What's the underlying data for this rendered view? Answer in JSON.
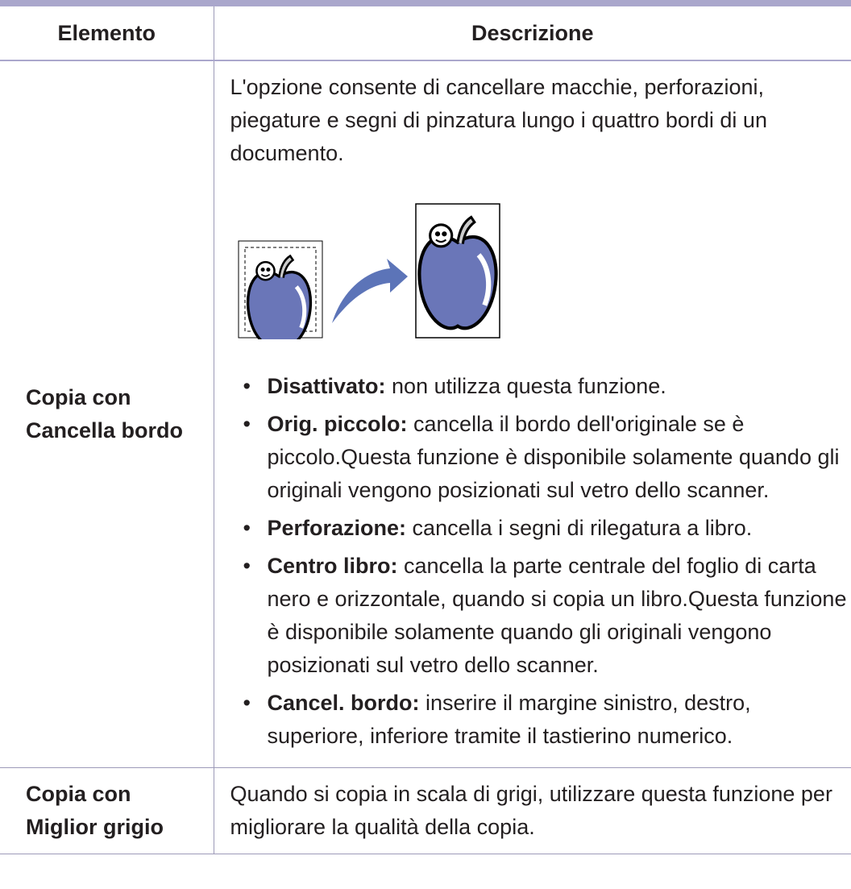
{
  "table": {
    "header": [
      "Elemento",
      "Descrizione"
    ],
    "rows": [
      {
        "item": [
          "Copia con",
          "Cancella bordo"
        ],
        "description": "L'opzione consente di cancellare macchie, perforazioni, piegature e segni di pinzatura lungo i quattro bordi di un documento.",
        "bullets": [
          {
            "term": "Disattivato:",
            "text": " non utilizza questa funzione."
          },
          {
            "term": "Orig. piccolo:",
            "text": " cancella il bordo dell'originale se è piccolo.Questa funzione è disponibile solamente quando gli originali vengono posizionati sul vetro dello scanner."
          },
          {
            "term": "Perforazione:",
            "text": " cancella i segni di rilegatura a libro."
          },
          {
            "term": "Centro libro:",
            "text": " cancella la parte centrale del foglio di carta nero e orizzontale, quando si copia un libro.Questa funzione è disponibile solamente quando gli originali vengono posizionati sul vetro dello scanner."
          },
          {
            "term": "Cancel. bordo:",
            "text": " inserire il margine sinistro, destro, superiore, inferiore tramite il tastierino numerico."
          }
        ]
      },
      {
        "item": [
          "Copia con",
          "Miglior grigio"
        ],
        "description": "Quando si copia in scala di grigi, utilizzare questa funzione per migliorare la qualità della copia.",
        "bullets": []
      }
    ]
  }
}
